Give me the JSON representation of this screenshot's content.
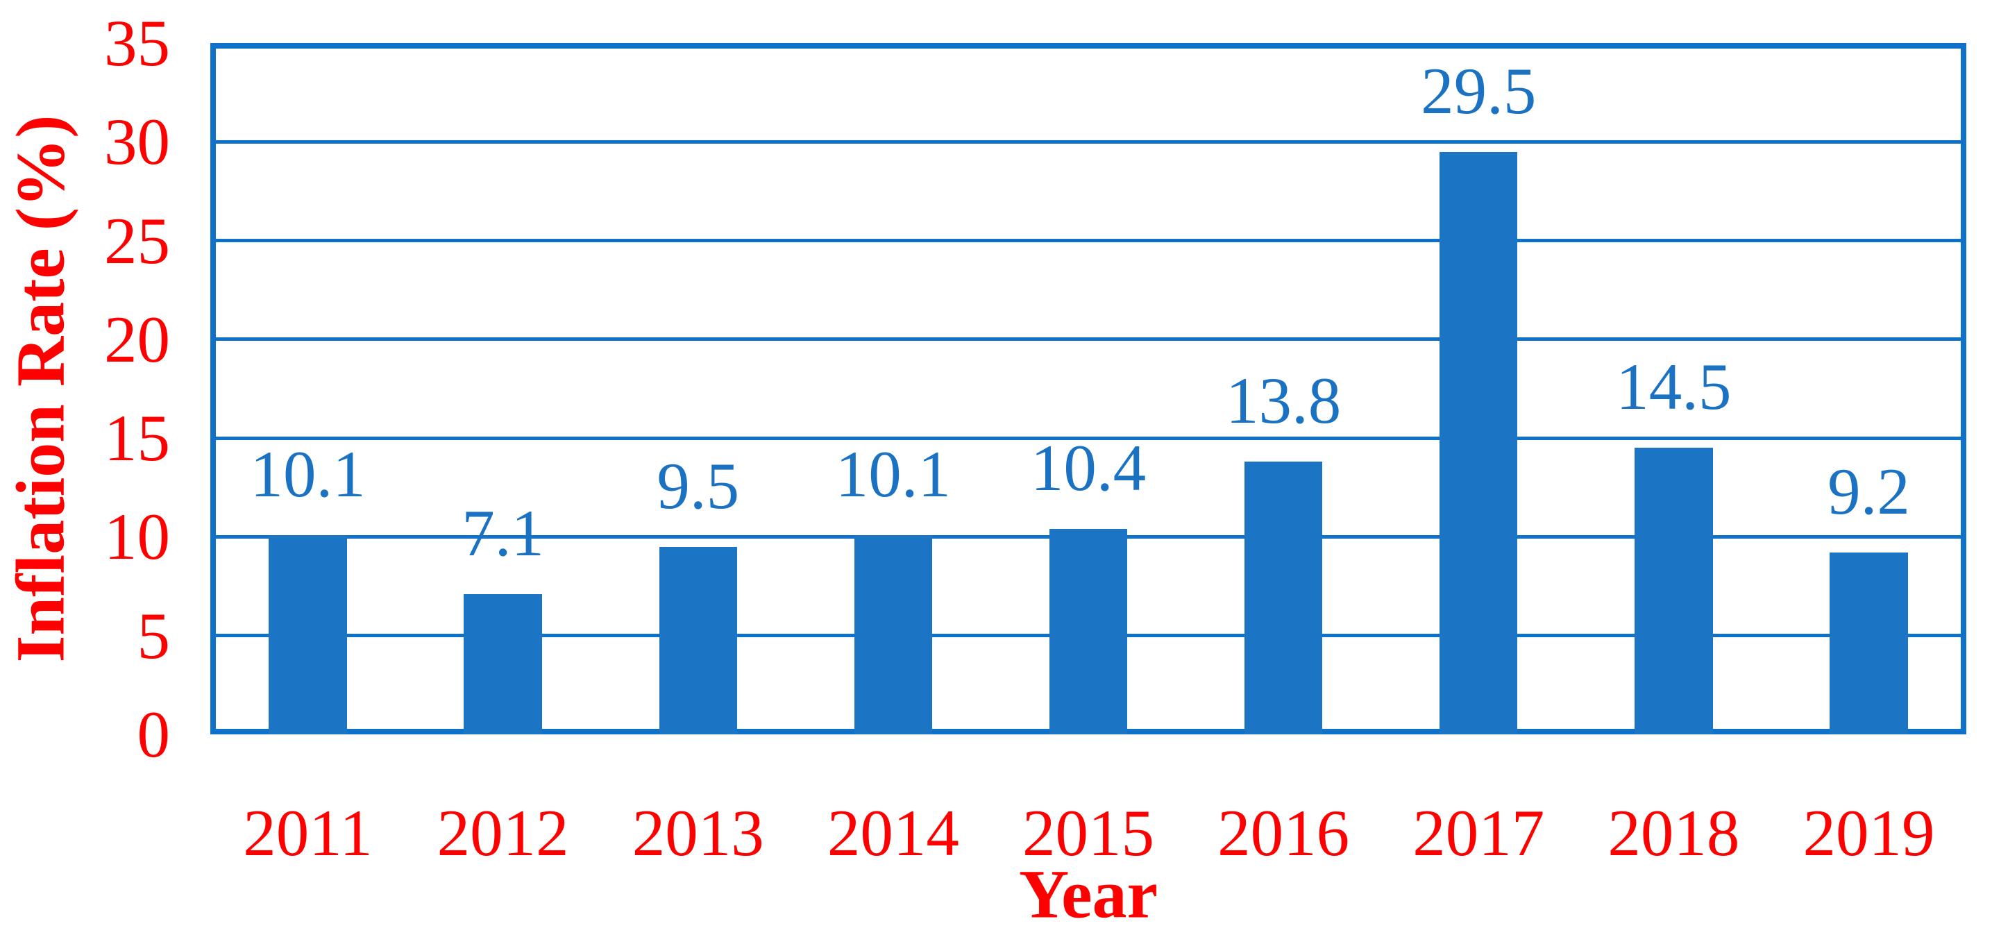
{
  "chart_data": {
    "type": "bar",
    "title": "",
    "categories": [
      "2011",
      "2012",
      "2013",
      "2014",
      "2015",
      "2016",
      "2017",
      "2018",
      "2019"
    ],
    "values": [
      10.1,
      7.1,
      9.5,
      10.1,
      10.4,
      13.8,
      29.5,
      14.5,
      9.2
    ],
    "xlabel": "Year",
    "ylabel": "Inflation Rate (%)",
    "ylim": [
      0,
      35
    ],
    "yticks": [
      0,
      5,
      10,
      15,
      20,
      25,
      30,
      35
    ],
    "grid": true,
    "legend_position": "none",
    "data_labels_shown": true,
    "colors": {
      "bar": "#1C74C5",
      "grid_line": "#0F72C8",
      "plot_border": "#0F72C8",
      "value_label": "#1B72C2",
      "axis_text": "#FF0000"
    }
  }
}
